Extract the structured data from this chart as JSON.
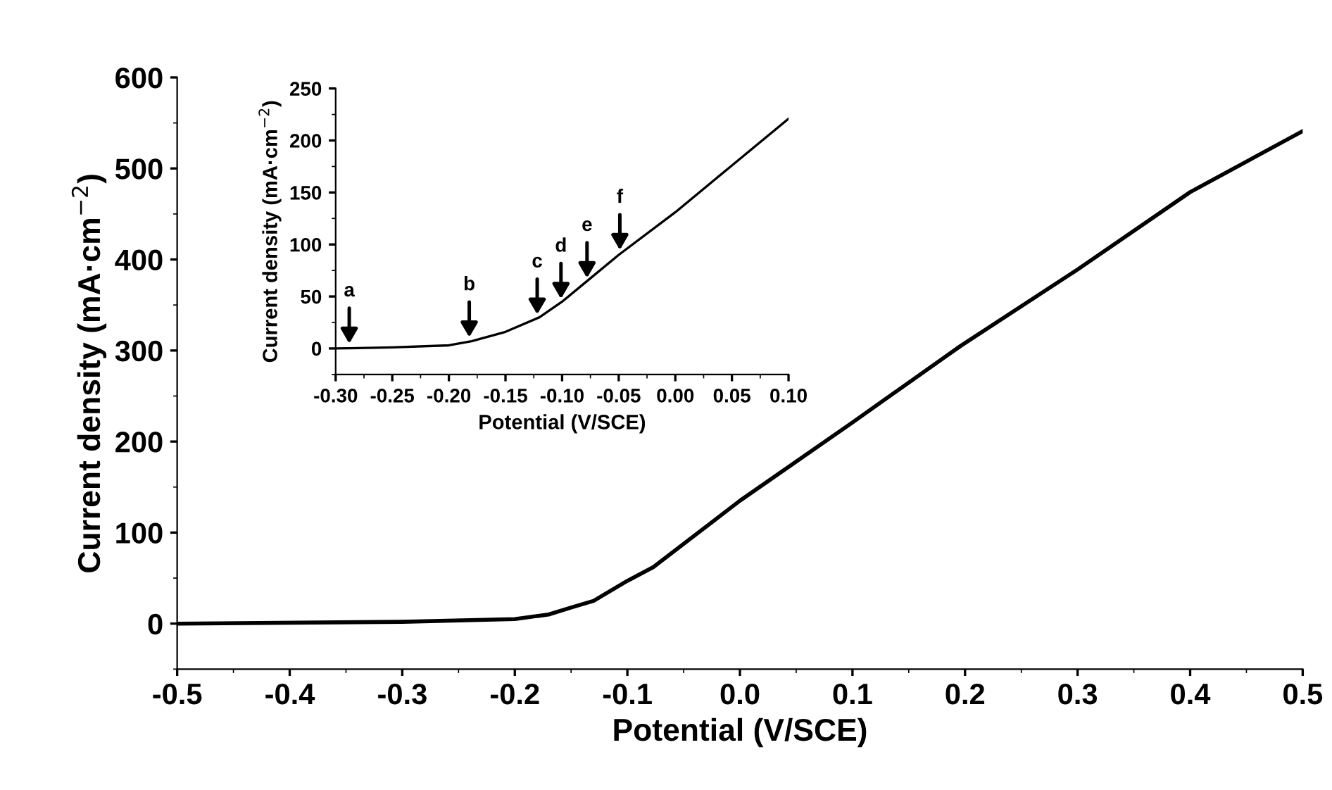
{
  "chart_data": [
    {
      "type": "line",
      "xlabel": "Potential (V/SCE)",
      "ylabel": "Current density (mA·cm$^{−2}$)",
      "xlim": [
        -0.5,
        0.5
      ],
      "ylim": [
        -50,
        600
      ],
      "xticks": [
        -0.5,
        -0.4,
        -0.3,
        -0.2,
        -0.1,
        {
          "value": 0,
          "label": "0.0"
        },
        0.1,
        0.2,
        0.3,
        0.4,
        0.5
      ],
      "yticks": [
        0,
        100,
        200,
        300,
        400,
        500,
        600
      ],
      "grid": false,
      "marker": "none",
      "line_style": "solid",
      "series": [
        {
          "color": "#000000",
          "x": [
            -0.5,
            -0.3,
            -0.2,
            -0.17,
            -0.149,
            -0.13,
            -0.1,
            -0.077,
            0.0,
            0.1,
            0.196,
            0.3,
            0.4,
            0.5
          ],
          "values": [
            0,
            2,
            5,
            10,
            18,
            25,
            47,
            62,
            135,
            221,
            305,
            389,
            474,
            541
          ]
        }
      ]
    },
    {
      "type": "line",
      "xlabel": "Potential (V/SCE)",
      "ylabel": "Current density (mA·cm$^{−2}$)",
      "xlim": [
        -0.3,
        0.1
      ],
      "ylim": [
        -25,
        250
      ],
      "xticks": [
        {
          "value": -0.3,
          "label": "-0.30"
        },
        {
          "value": -0.25,
          "label": "-0.25"
        },
        {
          "value": -0.2,
          "label": "-0.20"
        },
        {
          "value": -0.15,
          "label": "-0.15"
        },
        {
          "value": -0.1,
          "label": "-0.10"
        },
        {
          "value": -0.05,
          "label": "-0.05"
        },
        {
          "value": 0,
          "label": "0.00"
        },
        {
          "value": 0.05,
          "label": "0.05"
        },
        {
          "value": 0.1,
          "label": "0.10"
        }
      ],
      "yticks": [
        0,
        50,
        100,
        150,
        200,
        250
      ],
      "grid": false,
      "marker": "none",
      "line_style": "solid",
      "series": [
        {
          "color": "#000000",
          "x": [
            -0.3,
            -0.25,
            -0.2,
            -0.18,
            -0.15,
            -0.12,
            -0.1,
            -0.08,
            -0.05,
            0.0,
            0.05,
            0.1
          ],
          "values": [
            0,
            1,
            3,
            7,
            16,
            30,
            45,
            63,
            90,
            131,
            176,
            221
          ]
        }
      ],
      "annotations": [
        {
          "text": "a",
          "x": -0.288,
          "y": 1
        },
        {
          "text": "b",
          "x": -0.182,
          "y": 7
        },
        {
          "text": "c",
          "x": -0.122,
          "y": 29
        },
        {
          "text": "d",
          "x": -0.101,
          "y": 44
        },
        {
          "text": "e",
          "x": -0.078,
          "y": 64
        },
        {
          "text": "f",
          "x": -0.049,
          "y": 91
        }
      ]
    }
  ]
}
